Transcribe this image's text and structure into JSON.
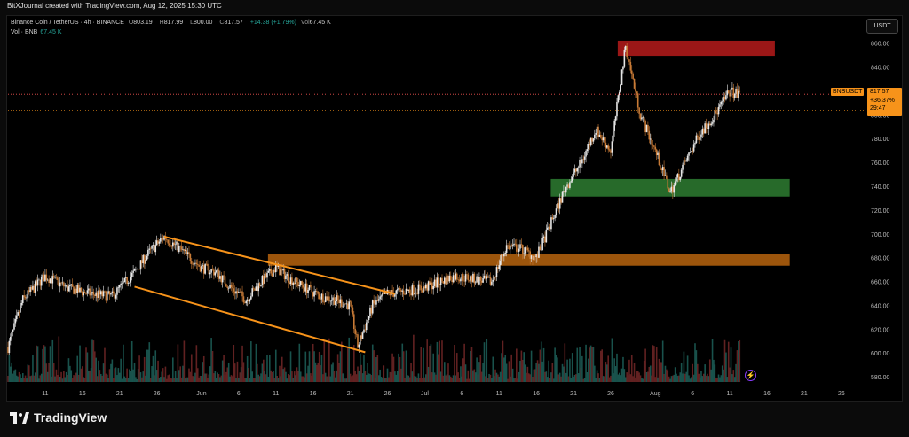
{
  "header": {
    "credit": "BitXJournal created with TradingView.com, Aug 12, 2025 15:30 UTC"
  },
  "legend": {
    "symbol": "Binance Coin / TetherUS · 4h · BINANCE",
    "open_label": "O",
    "open": "803.19",
    "high_label": "H",
    "high": "817.99",
    "low_label": "L",
    "low": "800.00",
    "close_label": "C",
    "close": "817.57",
    "change": "+14.38 (+1.79%)",
    "vol_label": "Vol",
    "vol": "67.45 K",
    "vol_line_label": "Vol · BNB",
    "vol_line_value": "67.45 K"
  },
  "price_scale": {
    "unit": "USDT"
  },
  "last_price": {
    "symbol": "BNBUSDT",
    "price": "817.57",
    "change_pct": "+36.37%",
    "countdown": "29:47"
  },
  "brand": {
    "name": "TradingView"
  },
  "colors": {
    "up": "#26a69a",
    "down": "#ef5350",
    "accent": "#f7931a",
    "supply_zone": "#b71c1c",
    "demand_zone": "#2e7d32",
    "support_zone": "#b8640f",
    "channel": "#f7931a"
  },
  "chart_data": {
    "type": "candlestick",
    "instrument": "BNBUSDT",
    "interval": "4h",
    "ylim": [
      576,
      872
    ],
    "y_ticks": [
      580,
      600,
      620,
      640,
      660,
      680,
      700,
      720,
      740,
      760,
      780,
      800,
      820,
      840,
      860
    ],
    "x_ticks": [
      "11",
      "16",
      "21",
      "26",
      "Jun",
      "6",
      "11",
      "16",
      "21",
      "26",
      "Jul",
      "6",
      "11",
      "16",
      "21",
      "26",
      "Aug",
      "6",
      "11",
      "16",
      "21",
      "26"
    ],
    "x_range": [
      "May 6, 2025",
      "Aug 29, 2025"
    ],
    "price_path": [
      [
        "May 6",
        605
      ],
      [
        "May 8",
        645
      ],
      [
        "May 11",
        665
      ],
      [
        "May 14",
        655
      ],
      [
        "May 17",
        650
      ],
      [
        "May 20",
        648
      ],
      [
        "May 23",
        668
      ],
      [
        "May 25",
        685
      ],
      [
        "May 27",
        698
      ],
      [
        "May 29",
        688
      ],
      [
        "Jun 1",
        672
      ],
      [
        "Jun 3",
        668
      ],
      [
        "Jun 5",
        655
      ],
      [
        "Jun 7",
        645
      ],
      [
        "Jun 9",
        660
      ],
      [
        "Jun 11",
        672
      ],
      [
        "Jun 13",
        662
      ],
      [
        "Jun 15",
        655
      ],
      [
        "Jun 17",
        648
      ],
      [
        "Jun 19",
        645
      ],
      [
        "Jun 21",
        640
      ],
      [
        "Jun 22",
        606
      ],
      [
        "Jun 24",
        640
      ],
      [
        "Jun 26",
        650
      ],
      [
        "Jul 1",
        655
      ],
      [
        "Jul 5",
        665
      ],
      [
        "Jul 10",
        660
      ],
      [
        "Jul 12",
        690
      ],
      [
        "Jul 14",
        688
      ],
      [
        "Jul 16",
        680
      ],
      [
        "Jul 18",
        710
      ],
      [
        "Jul 20",
        740
      ],
      [
        "Jul 22",
        760
      ],
      [
        "Jul 24",
        788
      ],
      [
        "Jul 26",
        770
      ],
      [
        "Jul 28",
        858
      ],
      [
        "Jul 30",
        800
      ],
      [
        "Aug 1",
        770
      ],
      [
        "Aug 3",
        735
      ],
      [
        "Aug 5",
        760
      ],
      [
        "Aug 7",
        785
      ],
      [
        "Aug 9",
        800
      ],
      [
        "Aug 11",
        820
      ],
      [
        "Aug 12",
        817.57
      ]
    ],
    "last_price": 817.57,
    "reference_price": 804,
    "zones": [
      {
        "name": "supply",
        "from": "Jul 27",
        "to": "Aug 17",
        "low": 850,
        "high": 862
      },
      {
        "name": "demand",
        "from": "Jul 18",
        "to": "Aug 19",
        "low": 732,
        "high": 746
      },
      {
        "name": "support",
        "from": "Jun 10",
        "to": "Aug 19",
        "low": 674,
        "high": 683
      }
    ],
    "channel": {
      "upper": [
        [
          "May 27",
          698
        ],
        [
          "Jun 27",
          650
        ]
      ],
      "lower": [
        [
          "May 23",
          656
        ],
        [
          "Jun 23",
          601
        ]
      ]
    }
  }
}
